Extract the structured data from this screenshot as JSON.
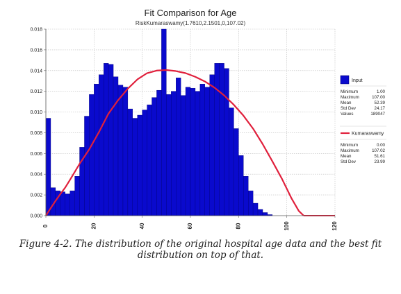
{
  "chart_data": {
    "type": "bar",
    "title": "Fit Comparison for Age",
    "subtitle": "RiskKumaraswamy(1.7610,2.1501,0,107.02)",
    "xlim": [
      0,
      120
    ],
    "ylim": [
      0,
      0.018
    ],
    "x_ticks": [
      "0",
      "20",
      "40",
      "60",
      "80",
      "100",
      "120"
    ],
    "y_ticks": [
      "0.000",
      "0.002",
      "0.004",
      "0.006",
      "0.008",
      "0.010",
      "0.012",
      "0.014",
      "0.016",
      "0.018"
    ],
    "grid": true,
    "legend_position": "right",
    "bin_width": 2,
    "series": [
      {
        "name": "Input",
        "type": "histogram",
        "color": "#0a0acd",
        "bin_start": [
          0,
          2,
          4,
          6,
          8,
          10,
          12,
          14,
          16,
          18,
          20,
          22,
          24,
          26,
          28,
          30,
          32,
          34,
          36,
          38,
          40,
          42,
          44,
          46,
          48,
          50,
          52,
          54,
          56,
          58,
          60,
          62,
          64,
          66,
          68,
          70,
          72,
          74,
          76,
          78,
          80,
          82,
          84,
          86,
          88,
          90,
          92,
          94,
          96,
          98,
          100,
          102,
          104,
          106,
          108,
          110,
          112,
          114,
          116,
          118
        ],
        "values": [
          0.0094,
          0.0027,
          0.0024,
          0.0023,
          0.0021,
          0.0024,
          0.0038,
          0.0066,
          0.0096,
          0.0117,
          0.0127,
          0.0136,
          0.0147,
          0.0146,
          0.0134,
          0.0126,
          0.0124,
          0.0103,
          0.0094,
          0.0097,
          0.0102,
          0.0107,
          0.0114,
          0.0121,
          0.018,
          0.0117,
          0.012,
          0.0133,
          0.0116,
          0.0124,
          0.0123,
          0.012,
          0.0127,
          0.0124,
          0.0136,
          0.0147,
          0.0147,
          0.0142,
          0.0104,
          0.0084,
          0.0058,
          0.0038,
          0.0024,
          0.0012,
          0.0006,
          0.0003,
          0.0001,
          0.0,
          0.0,
          0.0,
          0.0,
          0.0,
          0.0,
          0.0,
          0.0,
          0.0,
          0.0,
          0.0,
          0.0,
          0.0
        ]
      },
      {
        "name": "Kumaraswamy",
        "type": "line",
        "color": "#e0203c",
        "x": [
          0,
          2,
          4,
          6,
          8,
          10,
          14,
          18,
          22,
          26,
          30,
          34,
          38,
          42,
          46,
          50,
          54,
          58,
          62,
          66,
          70,
          74,
          78,
          82,
          86,
          90,
          94,
          98,
          102,
          105,
          107.02
        ],
        "values": [
          0.0,
          0.00072,
          0.00142,
          0.00208,
          0.0027,
          0.00345,
          0.005,
          0.0064,
          0.00805,
          0.00985,
          0.01115,
          0.01225,
          0.01315,
          0.01375,
          0.014,
          0.01405,
          0.01395,
          0.01375,
          0.0134,
          0.01295,
          0.01235,
          0.0116,
          0.0107,
          0.00965,
          0.0084,
          0.0069,
          0.00525,
          0.00355,
          0.00165,
          0.00045,
          0.0
        ]
      }
    ]
  },
  "legend": {
    "input_label": "Input",
    "input_stats": [
      {
        "label": "Minimum",
        "value": "1.00"
      },
      {
        "label": "Maximum",
        "value": "107.00"
      },
      {
        "label": "Mean",
        "value": "52.39"
      },
      {
        "label": "Std Dev",
        "value": "24.17"
      },
      {
        "label": "Values",
        "value": "189047"
      }
    ],
    "fit_label": "Kumaraswamy",
    "fit_stats": [
      {
        "label": "Minimum",
        "value": "0.00"
      },
      {
        "label": "Maximum",
        "value": "107.02"
      },
      {
        "label": "Mean",
        "value": "51.61"
      },
      {
        "label": "Std Dev",
        "value": "23.99"
      }
    ]
  },
  "caption": "Figure 4-2. The distribution of the original hospital age data and the best fit distribution on top of that."
}
